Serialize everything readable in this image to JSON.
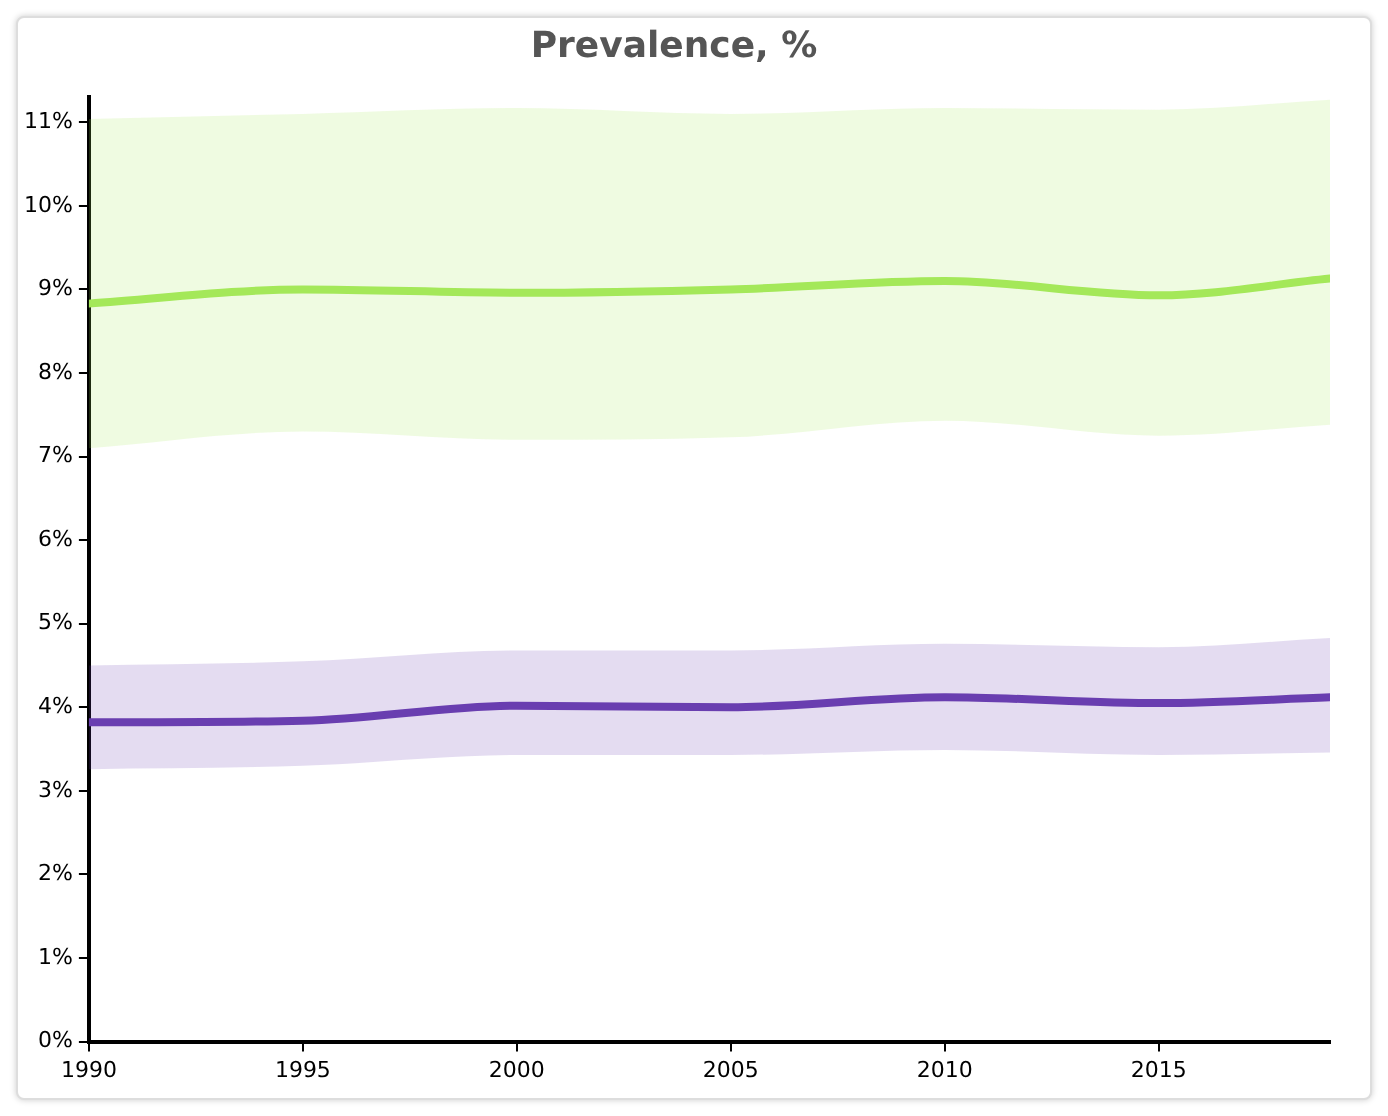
{
  "chart_data": {
    "type": "line",
    "title": "Prevalence, %",
    "x": [
      1990,
      1995,
      2000,
      2005,
      2010,
      2015,
      2019
    ],
    "series": [
      {
        "color": "#a4e85a",
        "values": [
          8.83,
          9.0,
          8.96,
          9.0,
          9.1,
          8.93,
          9.13
        ],
        "lower": [
          7.1,
          7.3,
          7.2,
          7.23,
          7.43,
          7.25,
          7.38
        ],
        "upper": [
          11.04,
          11.1,
          11.17,
          11.1,
          11.17,
          11.15,
          11.27
        ]
      },
      {
        "color": "#6a3fb0",
        "values": [
          3.82,
          3.84,
          4.02,
          4.0,
          4.12,
          4.05,
          4.12
        ],
        "lower": [
          3.26,
          3.3,
          3.43,
          3.43,
          3.49,
          3.43,
          3.46
        ],
        "upper": [
          4.5,
          4.55,
          4.68,
          4.68,
          4.76,
          4.72,
          4.83
        ]
      }
    ],
    "xlim": [
      1990,
      2019
    ],
    "xticks": [
      1990,
      1995,
      2000,
      2005,
      2010,
      2015
    ],
    "ylim": [
      0,
      11.3
    ],
    "yticks": [
      {
        "value": 0,
        "label": "0%"
      },
      {
        "value": 1,
        "label": "1%"
      },
      {
        "value": 2,
        "label": "2%"
      },
      {
        "value": 3,
        "label": "3%"
      },
      {
        "value": 4,
        "label": "4%"
      },
      {
        "value": 5,
        "label": "5%"
      },
      {
        "value": 6,
        "label": "6%"
      },
      {
        "value": 7,
        "label": "7%"
      },
      {
        "value": 8,
        "label": "8%"
      },
      {
        "value": 9,
        "label": "9%"
      },
      {
        "value": 10,
        "label": "10%"
      },
      {
        "value": 11,
        "label": "11%"
      }
    ],
    "grid": false,
    "legend": false,
    "marker": "none",
    "line_style": "solid"
  }
}
